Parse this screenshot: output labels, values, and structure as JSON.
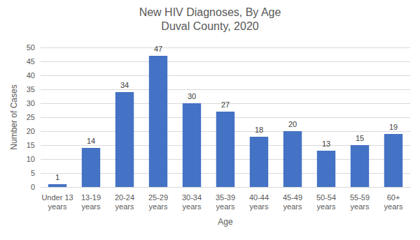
{
  "chart_data": {
    "type": "bar",
    "title": "New HIV Diagnoses, By Age",
    "subtitle": "Duval County, 2020",
    "x_label": "Age",
    "y_label": "Number of Cases",
    "categories": [
      "Under 13 years",
      "13-19 years",
      "20-24 years",
      "25-29 years",
      "30-34 years",
      "35-39 years",
      "40-44 years",
      "45-49 years",
      "50-54 years",
      "55-59 years",
      "60+ years"
    ],
    "values": [
      1,
      14,
      34,
      47,
      30,
      27,
      18,
      20,
      13,
      15,
      19
    ],
    "color": "#4472c4",
    "ylim": [
      0,
      50
    ],
    "yticks": [
      0,
      5,
      10,
      15,
      20,
      25,
      30,
      35,
      40,
      45,
      50
    ],
    "grid": true,
    "data_labels": true
  }
}
